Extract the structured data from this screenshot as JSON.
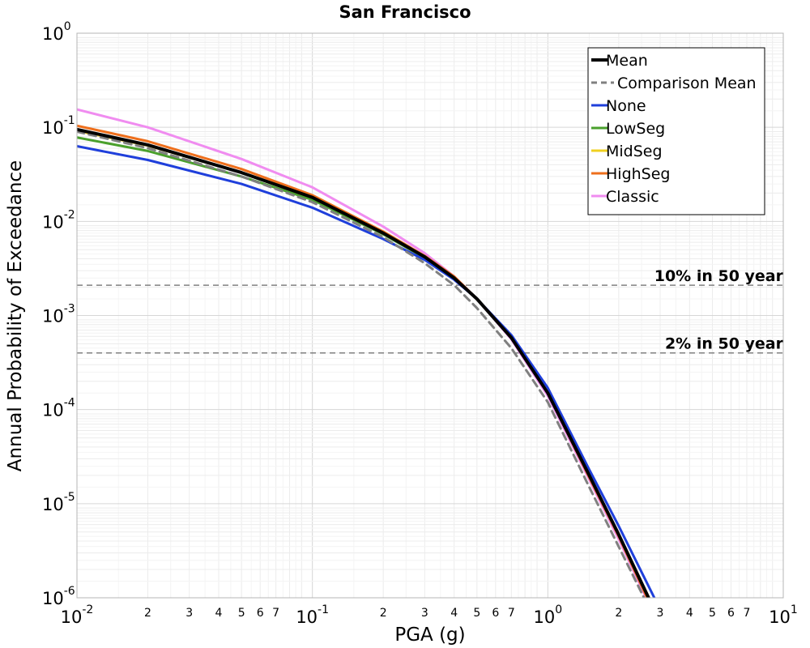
{
  "chart_data": {
    "type": "line",
    "title": "San Francisco",
    "xlabel": "PGA (g)",
    "ylabel": "Annual Probability of Exceedance",
    "xscale": "log",
    "yscale": "log",
    "xlim": [
      0.01,
      10
    ],
    "ylim": [
      1e-06,
      1
    ],
    "grid": true,
    "legend_position": "top-right",
    "x_major_ticks": [
      {
        "base": "10",
        "exp": "-2"
      },
      {
        "base": "10",
        "exp": "-1"
      },
      {
        "base": "10",
        "exp": "0"
      },
      {
        "base": "10",
        "exp": "1"
      }
    ],
    "y_major_ticks": [
      {
        "base": "10",
        "exp": "0"
      },
      {
        "base": "10",
        "exp": "-1"
      },
      {
        "base": "10",
        "exp": "-2"
      },
      {
        "base": "10",
        "exp": "-3"
      },
      {
        "base": "10",
        "exp": "-4"
      },
      {
        "base": "10",
        "exp": "-5"
      },
      {
        "base": "10",
        "exp": "-6"
      }
    ],
    "x_minor_tick_labels": [
      "2",
      "3",
      "4",
      "5",
      "6",
      "7"
    ],
    "reference_lines": [
      {
        "label": "10% in 50 year",
        "y": 0.0021,
        "color": "#808080"
      },
      {
        "label": "2% in 50 year",
        "y": 0.0004,
        "color": "#808080"
      }
    ],
    "series": [
      {
        "name": "Mean",
        "color": "#000000",
        "dash": "solid",
        "width": 4,
        "x": [
          0.01,
          0.02,
          0.05,
          0.1,
          0.2,
          0.3,
          0.4,
          0.5,
          0.7,
          1.0,
          1.5,
          2.0,
          3.0
        ],
        "y": [
          0.095,
          0.065,
          0.033,
          0.018,
          0.0075,
          0.0042,
          0.0025,
          0.0015,
          0.00058,
          0.00015,
          2e-05,
          4.7e-06,
          5.5e-07
        ]
      },
      {
        "name": "Comparison Mean",
        "color": "#808080",
        "dash": "dashed",
        "width": 3,
        "x": [
          0.01,
          0.02,
          0.05,
          0.1,
          0.2,
          0.3,
          0.4,
          0.5,
          0.7,
          1.0,
          1.5,
          2.0,
          3.0
        ],
        "y": [
          0.09,
          0.06,
          0.03,
          0.016,
          0.0068,
          0.0036,
          0.0021,
          0.0012,
          0.00045,
          0.00012,
          1.5e-05,
          3.5e-06,
          4.5e-07
        ]
      },
      {
        "name": "None",
        "color": "#1f3fdb",
        "dash": "solid",
        "width": 3,
        "x": [
          0.01,
          0.02,
          0.05,
          0.1,
          0.2,
          0.3,
          0.4,
          0.5,
          0.7,
          1.0,
          1.5,
          2.0,
          3.0
        ],
        "y": [
          0.063,
          0.045,
          0.025,
          0.014,
          0.0065,
          0.0039,
          0.0024,
          0.0015,
          0.00062,
          0.00017,
          2.3e-05,
          5.8e-06,
          7.5e-07
        ]
      },
      {
        "name": "LowSeg",
        "color": "#4aa02c",
        "dash": "solid",
        "width": 3,
        "x": [
          0.01,
          0.02,
          0.05,
          0.1,
          0.2,
          0.3,
          0.4,
          0.5,
          0.7,
          1.0,
          1.5,
          2.0,
          3.0
        ],
        "y": [
          0.078,
          0.056,
          0.03,
          0.017,
          0.0073,
          0.0041,
          0.0025,
          0.0015,
          0.00058,
          0.00015,
          2e-05,
          4.7e-06,
          5.5e-07
        ]
      },
      {
        "name": "MidSeg",
        "color": "#f0d020",
        "dash": "solid",
        "width": 3,
        "x": [
          0.01,
          0.02,
          0.05,
          0.1,
          0.2,
          0.3,
          0.4,
          0.5,
          0.7,
          1.0,
          1.5,
          2.0,
          3.0
        ],
        "y": [
          0.092,
          0.064,
          0.033,
          0.018,
          0.0075,
          0.0042,
          0.0025,
          0.0015,
          0.00058,
          0.00015,
          2e-05,
          4.7e-06,
          5.5e-07
        ]
      },
      {
        "name": "HighSeg",
        "color": "#ee6f1c",
        "dash": "solid",
        "width": 3,
        "x": [
          0.01,
          0.02,
          0.05,
          0.1,
          0.2,
          0.3,
          0.4,
          0.5,
          0.7,
          1.0,
          1.5,
          2.0,
          3.0
        ],
        "y": [
          0.104,
          0.071,
          0.036,
          0.019,
          0.0078,
          0.0043,
          0.0026,
          0.0015,
          0.00058,
          0.00015,
          1.9e-05,
          4.5e-06,
          5e-07
        ]
      },
      {
        "name": "Classic",
        "color": "#f08cf0",
        "dash": "solid",
        "width": 3,
        "x": [
          0.01,
          0.02,
          0.05,
          0.1,
          0.2,
          0.3,
          0.4,
          0.5,
          0.7,
          1.0,
          1.5,
          2.0,
          3.0
        ],
        "y": [
          0.155,
          0.1,
          0.046,
          0.023,
          0.0088,
          0.0046,
          0.0026,
          0.0015,
          0.00056,
          0.00014,
          1.8e-05,
          4.2e-06,
          4.8e-07
        ]
      }
    ]
  }
}
